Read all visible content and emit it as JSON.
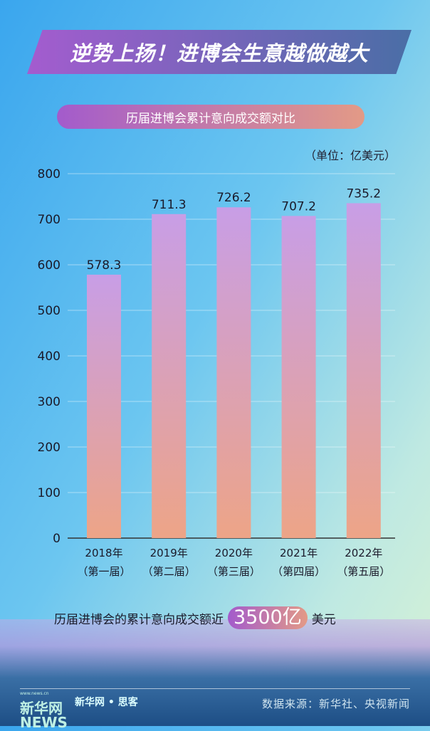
{
  "header": {
    "title": "逆势上扬！进博会生意越做越大"
  },
  "chart_data": {
    "type": "bar",
    "title": "历届进博会累计意向成交额对比",
    "unit": "（单位：亿美元）",
    "categories": [
      [
        "2018年",
        "（第一届）"
      ],
      [
        "2019年",
        "（第二届）"
      ],
      [
        "2020年",
        "（第三届）"
      ],
      [
        "2021年",
        "（第四届）"
      ],
      [
        "2022年",
        "（第五届）"
      ]
    ],
    "values": [
      578.3,
      711.3,
      726.2,
      707.2,
      735.2
    ],
    "data_labels": [
      "578.3",
      "711.3",
      "726.2",
      "707.2",
      "735.2"
    ],
    "ylim": [
      0,
      800
    ],
    "yticks": [
      "0",
      "100",
      "200",
      "300",
      "400",
      "500",
      "600",
      "700",
      "800"
    ],
    "grid": true,
    "bar_gradient": [
      "#c89ee6",
      "#eda487"
    ]
  },
  "summary": {
    "text": "历届进博会的累计意向成交额近",
    "highlight": "3500亿",
    "suffix": "美元"
  },
  "footer": {
    "logo_url_text": "www.news.cn",
    "logo_text": "新华网",
    "logo_news": "NEWS",
    "brand": "新华网 • 思客",
    "source": "数据来源：新华社、央视新闻"
  }
}
